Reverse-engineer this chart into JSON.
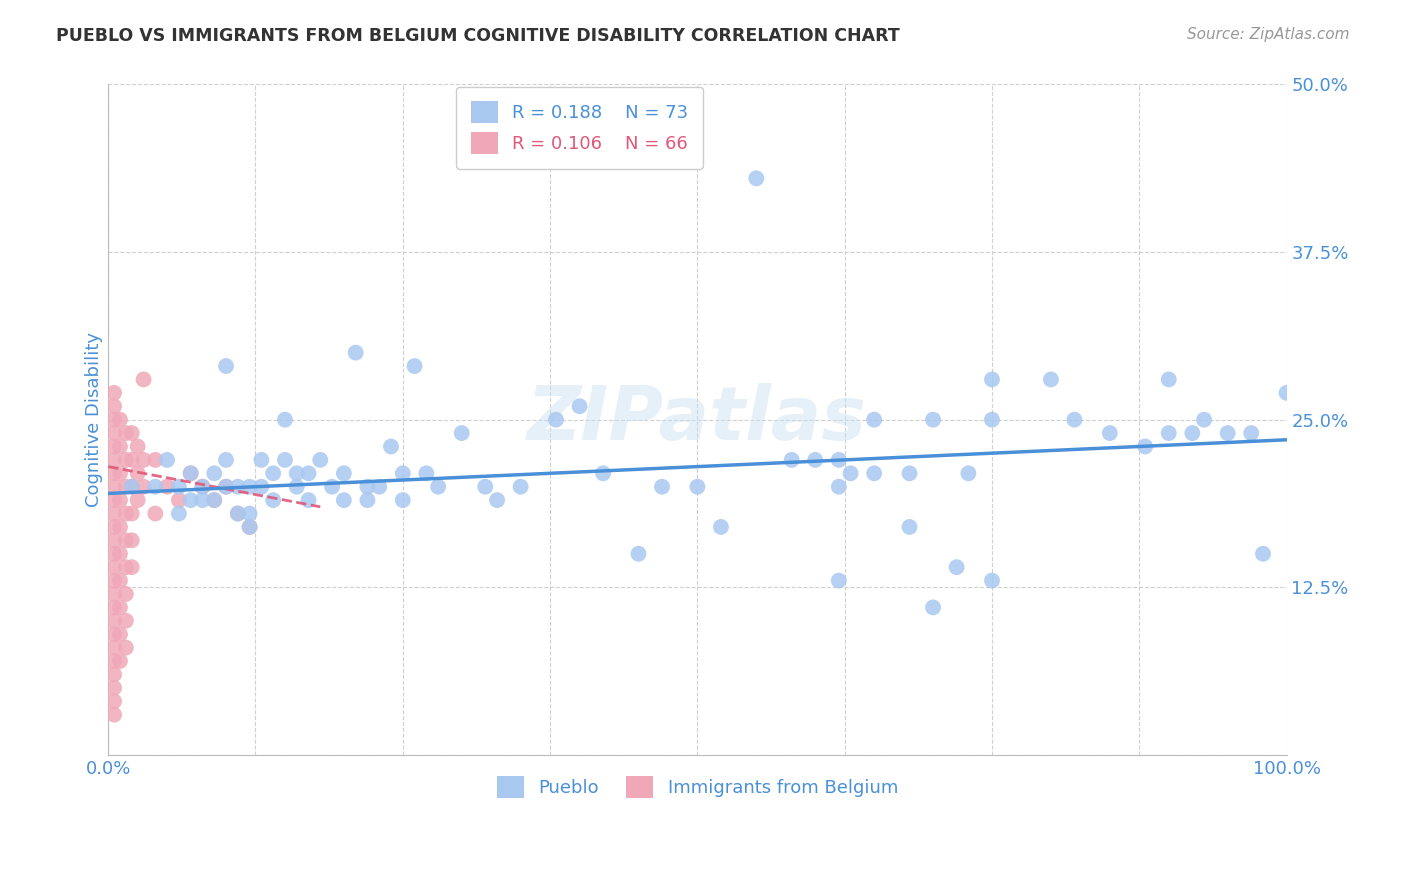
{
  "title": "PUEBLO VS IMMIGRANTS FROM BELGIUM COGNITIVE DISABILITY CORRELATION CHART",
  "source": "Source: ZipAtlas.com",
  "ylabel": "Cognitive Disability",
  "xlim": [
    0.0,
    1.0
  ],
  "ylim": [
    0.0,
    0.5
  ],
  "xticks": [
    0.0,
    0.125,
    0.25,
    0.375,
    0.5,
    0.625,
    0.75,
    0.875,
    1.0
  ],
  "xticklabels": [
    "0.0%",
    "",
    "",
    "",
    "",
    "",
    "",
    "",
    "100.0%"
  ],
  "yticks": [
    0.0,
    0.125,
    0.25,
    0.375,
    0.5
  ],
  "yticklabels": [
    "",
    "12.5%",
    "25.0%",
    "37.5%",
    "50.0%"
  ],
  "watermark": "ZIPatlas",
  "pueblo_color": "#a8c8f0",
  "belgium_color": "#f0a8b8",
  "pueblo_line_color": "#4a90d9",
  "belgium_line_color": "#e05878",
  "background_color": "#ffffff",
  "grid_color": "#d0d0d0",
  "tick_color": "#4a90d9",
  "pueblo_scatter": [
    [
      0.02,
      0.2
    ],
    [
      0.04,
      0.2
    ],
    [
      0.05,
      0.22
    ],
    [
      0.06,
      0.2
    ],
    [
      0.06,
      0.18
    ],
    [
      0.07,
      0.21
    ],
    [
      0.07,
      0.19
    ],
    [
      0.08,
      0.2
    ],
    [
      0.08,
      0.19
    ],
    [
      0.09,
      0.21
    ],
    [
      0.09,
      0.19
    ],
    [
      0.1,
      0.29
    ],
    [
      0.1,
      0.22
    ],
    [
      0.1,
      0.2
    ],
    [
      0.11,
      0.2
    ],
    [
      0.11,
      0.18
    ],
    [
      0.12,
      0.2
    ],
    [
      0.12,
      0.18
    ],
    [
      0.12,
      0.17
    ],
    [
      0.13,
      0.22
    ],
    [
      0.13,
      0.2
    ],
    [
      0.14,
      0.21
    ],
    [
      0.14,
      0.19
    ],
    [
      0.15,
      0.25
    ],
    [
      0.15,
      0.22
    ],
    [
      0.16,
      0.21
    ],
    [
      0.16,
      0.2
    ],
    [
      0.17,
      0.21
    ],
    [
      0.17,
      0.19
    ],
    [
      0.18,
      0.22
    ],
    [
      0.19,
      0.2
    ],
    [
      0.2,
      0.21
    ],
    [
      0.2,
      0.19
    ],
    [
      0.21,
      0.3
    ],
    [
      0.22,
      0.2
    ],
    [
      0.22,
      0.19
    ],
    [
      0.23,
      0.2
    ],
    [
      0.24,
      0.23
    ],
    [
      0.25,
      0.21
    ],
    [
      0.25,
      0.19
    ],
    [
      0.26,
      0.29
    ],
    [
      0.27,
      0.21
    ],
    [
      0.28,
      0.2
    ],
    [
      0.3,
      0.24
    ],
    [
      0.32,
      0.2
    ],
    [
      0.33,
      0.19
    ],
    [
      0.35,
      0.2
    ],
    [
      0.38,
      0.25
    ],
    [
      0.4,
      0.26
    ],
    [
      0.42,
      0.21
    ],
    [
      0.45,
      0.15
    ],
    [
      0.47,
      0.2
    ],
    [
      0.5,
      0.2
    ],
    [
      0.52,
      0.17
    ],
    [
      0.55,
      0.43
    ],
    [
      0.58,
      0.22
    ],
    [
      0.6,
      0.22
    ],
    [
      0.62,
      0.22
    ],
    [
      0.62,
      0.2
    ],
    [
      0.63,
      0.21
    ],
    [
      0.65,
      0.25
    ],
    [
      0.65,
      0.21
    ],
    [
      0.68,
      0.21
    ],
    [
      0.68,
      0.17
    ],
    [
      0.7,
      0.25
    ],
    [
      0.72,
      0.14
    ],
    [
      0.73,
      0.21
    ],
    [
      0.75,
      0.28
    ],
    [
      0.75,
      0.25
    ],
    [
      0.8,
      0.28
    ],
    [
      0.82,
      0.25
    ],
    [
      0.85,
      0.24
    ],
    [
      0.88,
      0.23
    ],
    [
      0.9,
      0.28
    ],
    [
      0.9,
      0.24
    ],
    [
      0.92,
      0.24
    ],
    [
      0.93,
      0.25
    ],
    [
      0.95,
      0.24
    ],
    [
      0.97,
      0.24
    ],
    [
      0.98,
      0.15
    ],
    [
      1.0,
      0.27
    ],
    [
      0.62,
      0.13
    ],
    [
      0.7,
      0.11
    ],
    [
      0.75,
      0.13
    ]
  ],
  "belgium_scatter": [
    [
      0.005,
      0.27
    ],
    [
      0.005,
      0.26
    ],
    [
      0.005,
      0.25
    ],
    [
      0.005,
      0.24
    ],
    [
      0.005,
      0.23
    ],
    [
      0.005,
      0.22
    ],
    [
      0.005,
      0.21
    ],
    [
      0.005,
      0.2
    ],
    [
      0.005,
      0.19
    ],
    [
      0.005,
      0.18
    ],
    [
      0.005,
      0.17
    ],
    [
      0.005,
      0.16
    ],
    [
      0.005,
      0.15
    ],
    [
      0.005,
      0.14
    ],
    [
      0.005,
      0.13
    ],
    [
      0.005,
      0.12
    ],
    [
      0.005,
      0.11
    ],
    [
      0.005,
      0.1
    ],
    [
      0.005,
      0.09
    ],
    [
      0.005,
      0.08
    ],
    [
      0.005,
      0.07
    ],
    [
      0.005,
      0.06
    ],
    [
      0.005,
      0.05
    ],
    [
      0.005,
      0.04
    ],
    [
      0.005,
      0.03
    ],
    [
      0.01,
      0.25
    ],
    [
      0.01,
      0.23
    ],
    [
      0.01,
      0.21
    ],
    [
      0.01,
      0.19
    ],
    [
      0.01,
      0.17
    ],
    [
      0.01,
      0.15
    ],
    [
      0.01,
      0.13
    ],
    [
      0.01,
      0.11
    ],
    [
      0.01,
      0.09
    ],
    [
      0.01,
      0.07
    ],
    [
      0.015,
      0.24
    ],
    [
      0.015,
      0.22
    ],
    [
      0.015,
      0.2
    ],
    [
      0.015,
      0.18
    ],
    [
      0.015,
      0.16
    ],
    [
      0.015,
      0.14
    ],
    [
      0.015,
      0.12
    ],
    [
      0.015,
      0.1
    ],
    [
      0.015,
      0.08
    ],
    [
      0.02,
      0.24
    ],
    [
      0.02,
      0.22
    ],
    [
      0.02,
      0.2
    ],
    [
      0.02,
      0.18
    ],
    [
      0.02,
      0.16
    ],
    [
      0.02,
      0.14
    ],
    [
      0.025,
      0.23
    ],
    [
      0.025,
      0.21
    ],
    [
      0.025,
      0.19
    ],
    [
      0.03,
      0.28
    ],
    [
      0.03,
      0.22
    ],
    [
      0.03,
      0.2
    ],
    [
      0.04,
      0.22
    ],
    [
      0.04,
      0.18
    ],
    [
      0.05,
      0.2
    ],
    [
      0.06,
      0.19
    ],
    [
      0.07,
      0.21
    ],
    [
      0.08,
      0.2
    ],
    [
      0.09,
      0.19
    ],
    [
      0.1,
      0.2
    ],
    [
      0.11,
      0.18
    ],
    [
      0.12,
      0.17
    ]
  ],
  "pueblo_trend": [
    0.0,
    1.0,
    0.195,
    0.235
  ],
  "belgium_trend_x0": 0.0,
  "belgium_trend_x1": 1.0,
  "belgium_trend_y0": 0.215,
  "belgium_trend_y1": 0.185
}
